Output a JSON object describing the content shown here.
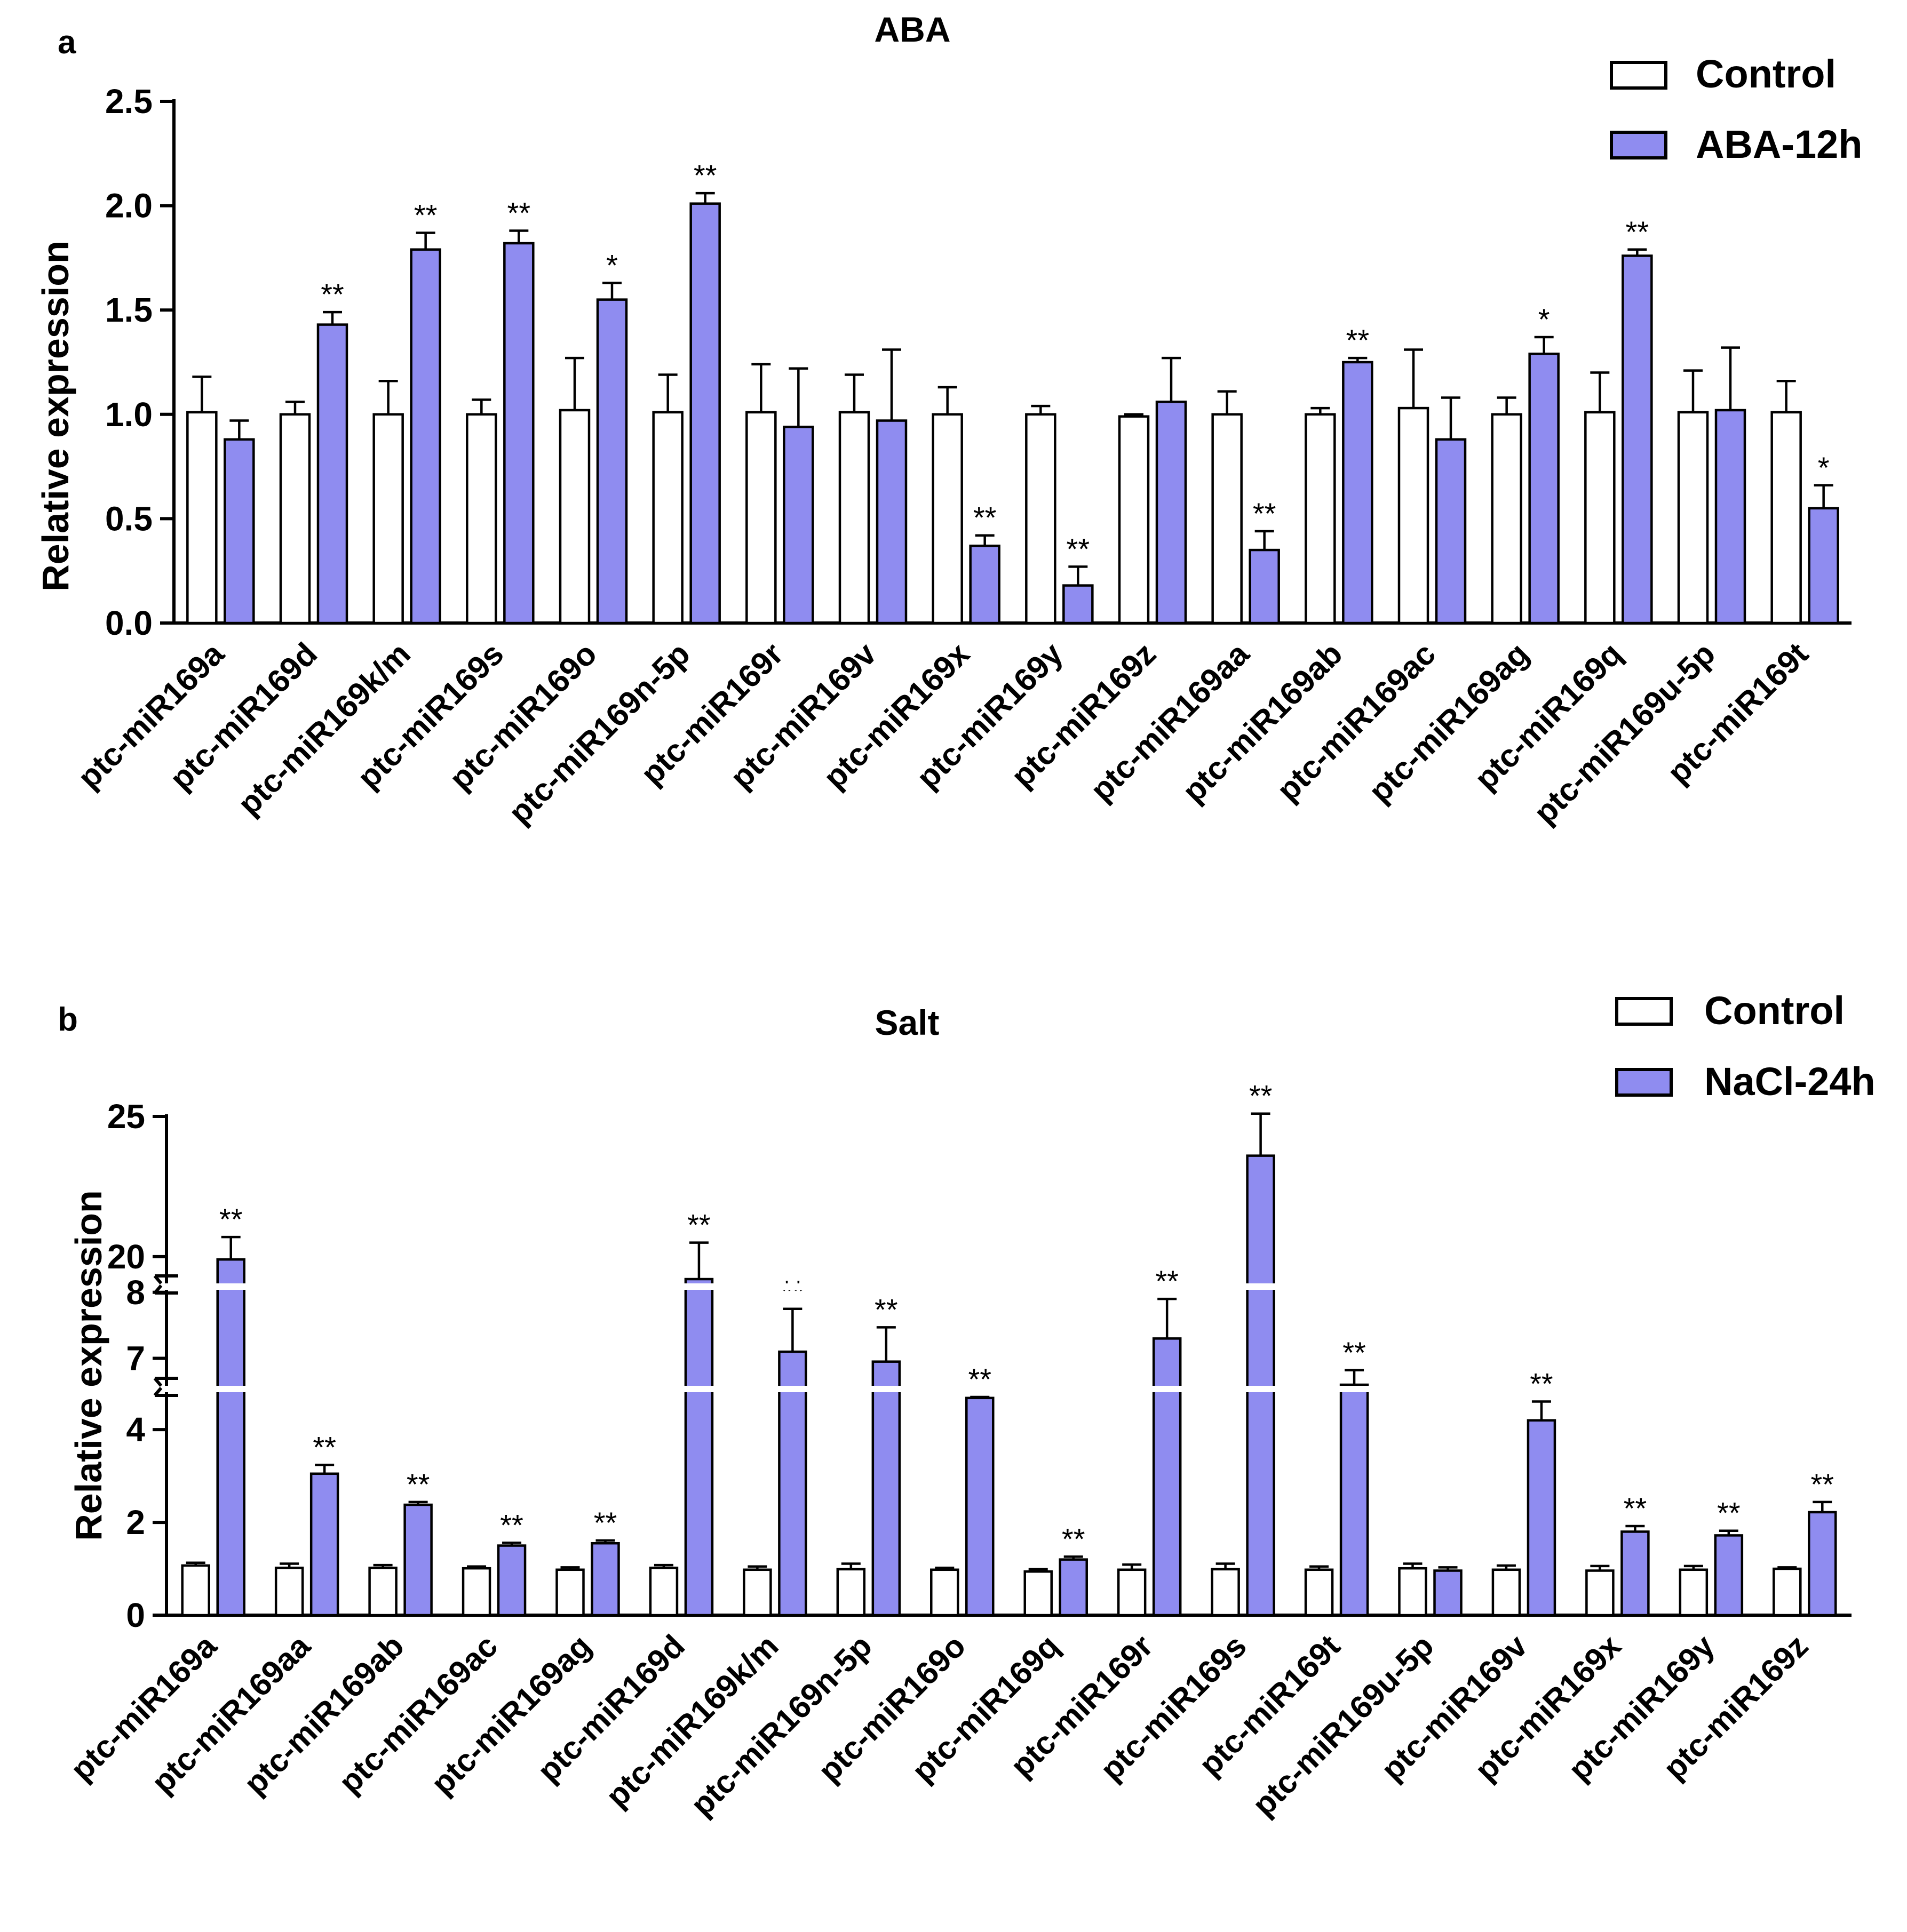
{
  "figure": {
    "panels": [
      {
        "label": "a",
        "title": "ABA"
      },
      {
        "label": "b",
        "title": "Salt"
      }
    ]
  },
  "colors": {
    "control_fill": "#ffffff",
    "treatment_fill": "#8f8cf0",
    "axis": "#000000"
  },
  "chart_data": [
    {
      "type": "bar",
      "panel": "a",
      "title": "ABA",
      "xlabel": "",
      "ylabel": "Relative expression",
      "ylim": [
        0,
        2.5
      ],
      "yticks": [
        0.0,
        0.5,
        1.0,
        1.5,
        2.0,
        2.5
      ],
      "ytick_labels": [
        "0.0",
        "0.5",
        "1.0",
        "1.5",
        "2.0",
        "2.5"
      ],
      "legend": {
        "position": "top-right",
        "entries": [
          "Control",
          "ABA-12h"
        ]
      },
      "categories": [
        "ptc-miR169a",
        "ptc-miR169d",
        "ptc-miR169k/m",
        "ptc-miR169s",
        "ptc-miR169o",
        "ptc-miR169n-5p",
        "ptc-miR169r",
        "ptc-miR169v",
        "ptc-miR169x",
        "ptc-miR169y",
        "ptc-miR169z",
        "ptc-miR169aa",
        "ptc-miR169ab",
        "ptc-miR169ac",
        "ptc-miR169ag",
        "ptc-miR169q",
        "ptc-miR169u-5p",
        "ptc-miR169t"
      ],
      "series": [
        {
          "name": "Control",
          "values": [
            1.01,
            1.0,
            1.0,
            1.0,
            1.02,
            1.01,
            1.01,
            1.01,
            1.0,
            1.0,
            0.99,
            1.0,
            1.0,
            1.03,
            1.0,
            1.01,
            1.01,
            1.01
          ],
          "errors": [
            0.17,
            0.06,
            0.16,
            0.07,
            0.25,
            0.18,
            0.23,
            0.18,
            0.13,
            0.04,
            0.01,
            0.11,
            0.03,
            0.28,
            0.08,
            0.19,
            0.2,
            0.15
          ]
        },
        {
          "name": "ABA-12h",
          "values": [
            0.88,
            1.43,
            1.79,
            1.82,
            1.55,
            2.01,
            0.94,
            0.97,
            0.37,
            0.18,
            1.06,
            0.35,
            1.25,
            0.88,
            1.29,
            1.76,
            1.02,
            0.55
          ],
          "errors": [
            0.09,
            0.06,
            0.08,
            0.06,
            0.08,
            0.05,
            0.28,
            0.34,
            0.05,
            0.09,
            0.21,
            0.09,
            0.02,
            0.2,
            0.08,
            0.03,
            0.3,
            0.11
          ],
          "significance": [
            "",
            "**",
            "**",
            "**",
            "*",
            "**",
            "",
            "",
            "**",
            "**",
            "",
            "**",
            "**",
            "",
            "*",
            "**",
            "",
            "*"
          ]
        }
      ]
    },
    {
      "type": "bar",
      "panel": "b",
      "title": "Salt",
      "xlabel": "",
      "ylabel": "Relative expression",
      "ylim": [
        0,
        25
      ],
      "axis_breaks": [
        [
          4.6,
          6.6
        ],
        [
          8.2,
          19.2
        ]
      ],
      "yticks": [
        0,
        2,
        4,
        7,
        8,
        20,
        25
      ],
      "ytick_labels": [
        "0",
        "2",
        "4",
        "7",
        "8",
        "20",
        "25"
      ],
      "legend": {
        "position": "top-right",
        "entries": [
          "Control",
          "NaCl-24h"
        ]
      },
      "categories": [
        "ptc-miR169a",
        "ptc-miR169aa",
        "ptc-miR169ab",
        "ptc-miR169ac",
        "ptc-miR169ag",
        "ptc-miR169d",
        "ptc-miR169k/m",
        "ptc-miR169n-5p",
        "ptc-miR169o",
        "ptc-miR169q",
        "ptc-miR169r",
        "ptc-miR169s",
        "ptc-miR169t",
        "ptc-miR169u-5p",
        "ptc-miR169v",
        "ptc-miR169x",
        "ptc-miR169y",
        "ptc-miR169z"
      ],
      "series": [
        {
          "name": "Control",
          "values": [
            1.07,
            1.02,
            1.02,
            1.01,
            0.98,
            1.02,
            0.98,
            0.99,
            0.98,
            0.94,
            0.98,
            0.99,
            0.98,
            1.01,
            0.98,
            0.96,
            0.98,
            1.0
          ],
          "errors": [
            0.06,
            0.09,
            0.06,
            0.04,
            0.05,
            0.06,
            0.07,
            0.12,
            0.04,
            0.05,
            0.11,
            0.12,
            0.07,
            0.1,
            0.09,
            0.1,
            0.08,
            0.03
          ]
        },
        {
          "name": "NaCl-24h",
          "values": [
            19.9,
            3.05,
            2.38,
            1.5,
            1.55,
            19.2,
            7.1,
            6.95,
            5.05,
            1.2,
            7.3,
            23.6,
            6.6,
            0.96,
            4.2,
            1.8,
            1.72,
            2.22
          ],
          "errors": [
            0.8,
            0.19,
            0.06,
            0.06,
            0.06,
            1.3,
            0.65,
            0.52,
            0.11,
            0.06,
            0.6,
            1.5,
            0.22,
            0.07,
            0.43,
            0.12,
            0.1,
            0.22
          ],
          "significance": [
            "**",
            "**",
            "**",
            "**",
            "**",
            "**",
            "**",
            "**",
            "**",
            "**",
            "**",
            "**",
            "**",
            "",
            "**",
            "**",
            "**",
            "**"
          ]
        }
      ]
    }
  ]
}
